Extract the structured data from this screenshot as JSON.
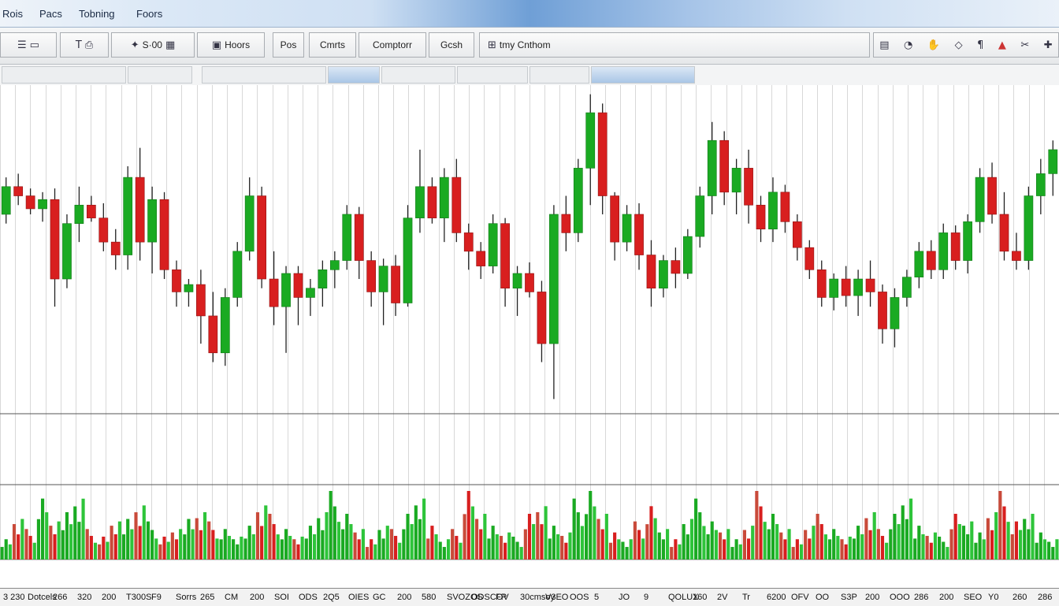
{
  "menu": [
    {
      "label": "Rois"
    },
    {
      "label": "Pacs"
    },
    {
      "label": "Tobning"
    },
    {
      "label": "Foors"
    }
  ],
  "toolbar": {
    "zoom_label": "S·00",
    "hours_label": "Hoors",
    "pos_label": "Pos",
    "charts_label": "Cmrts",
    "compare_label": "Comptorr",
    "grid_label": "Gcsh",
    "timing_label": "tmy Cnthom"
  },
  "icons": {
    "left": [
      "bars-icon",
      "data-window-icon",
      "text-tool-icon",
      "print-icon",
      "cursor-icon",
      "grid-icon",
      "chart-window-icon",
      "table-icon"
    ],
    "right": [
      "layout-icon",
      "clock-icon",
      "hand-icon",
      "diamond-icon",
      "shape-tool-icon",
      "triangle-alert-icon",
      "scissors-icon",
      "plus-crosshair-icon"
    ]
  },
  "colors": {
    "up": "#1aaa22",
    "down": "#d81f1f",
    "wick": "#222222"
  },
  "x_axis_labels": [
    "3 230",
    "Dotcels",
    "266",
    "320",
    "200",
    "T300S",
    "F9",
    "Sorrs",
    "265",
    "CM",
    "200",
    "SOI",
    "ODS",
    "2Q5",
    "OIES",
    "GC",
    "200",
    "580",
    "SVOZOS",
    "ODSCOV",
    "FP",
    "30cmsoy",
    "V3EO",
    "OOS",
    "5",
    "JO",
    "9",
    "QOLUX",
    "160",
    "2V",
    "Tr",
    "6200",
    "OFV",
    "OO",
    "S3P",
    "200",
    "OOO",
    "286",
    "200",
    "SEO",
    "Y0",
    "260",
    "286"
  ],
  "chart_data": {
    "type": "candlestick",
    "y_axis": "none visible",
    "grid": true,
    "series": [
      {
        "o": 200,
        "h": 220,
        "l": 195,
        "c": 215
      },
      {
        "o": 215,
        "h": 222,
        "l": 205,
        "c": 210
      },
      {
        "o": 210,
        "h": 214,
        "l": 200,
        "c": 203
      },
      {
        "o": 203,
        "h": 212,
        "l": 196,
        "c": 208
      },
      {
        "o": 208,
        "h": 214,
        "l": 150,
        "c": 165
      },
      {
        "o": 165,
        "h": 200,
        "l": 160,
        "c": 195
      },
      {
        "o": 195,
        "h": 215,
        "l": 185,
        "c": 205
      },
      {
        "o": 205,
        "h": 210,
        "l": 196,
        "c": 198
      },
      {
        "o": 198,
        "h": 206,
        "l": 180,
        "c": 185
      },
      {
        "o": 185,
        "h": 192,
        "l": 170,
        "c": 178
      },
      {
        "o": 178,
        "h": 226,
        "l": 170,
        "c": 220
      },
      {
        "o": 220,
        "h": 236,
        "l": 175,
        "c": 185
      },
      {
        "o": 185,
        "h": 215,
        "l": 168,
        "c": 208
      },
      {
        "o": 208,
        "h": 212,
        "l": 165,
        "c": 170
      },
      {
        "o": 170,
        "h": 175,
        "l": 150,
        "c": 158
      },
      {
        "o": 158,
        "h": 165,
        "l": 150,
        "c": 162
      },
      {
        "o": 162,
        "h": 170,
        "l": 130,
        "c": 145
      },
      {
        "o": 145,
        "h": 158,
        "l": 120,
        "c": 125
      },
      {
        "o": 125,
        "h": 160,
        "l": 118,
        "c": 155
      },
      {
        "o": 155,
        "h": 185,
        "l": 150,
        "c": 180
      },
      {
        "o": 180,
        "h": 220,
        "l": 175,
        "c": 210
      },
      {
        "o": 210,
        "h": 215,
        "l": 160,
        "c": 165
      },
      {
        "o": 165,
        "h": 180,
        "l": 140,
        "c": 150
      },
      {
        "o": 150,
        "h": 172,
        "l": 125,
        "c": 168
      },
      {
        "o": 168,
        "h": 172,
        "l": 140,
        "c": 155
      },
      {
        "o": 155,
        "h": 165,
        "l": 145,
        "c": 160
      },
      {
        "o": 160,
        "h": 175,
        "l": 150,
        "c": 170
      },
      {
        "o": 170,
        "h": 180,
        "l": 160,
        "c": 175
      },
      {
        "o": 175,
        "h": 205,
        "l": 170,
        "c": 200
      },
      {
        "o": 200,
        "h": 204,
        "l": 165,
        "c": 175
      },
      {
        "o": 175,
        "h": 180,
        "l": 150,
        "c": 158
      },
      {
        "o": 158,
        "h": 176,
        "l": 140,
        "c": 172
      },
      {
        "o": 172,
        "h": 178,
        "l": 145,
        "c": 152
      },
      {
        "o": 152,
        "h": 205,
        "l": 150,
        "c": 198
      },
      {
        "o": 198,
        "h": 235,
        "l": 190,
        "c": 215
      },
      {
        "o": 215,
        "h": 220,
        "l": 195,
        "c": 198
      },
      {
        "o": 198,
        "h": 225,
        "l": 185,
        "c": 220
      },
      {
        "o": 220,
        "h": 230,
        "l": 185,
        "c": 190
      },
      {
        "o": 190,
        "h": 195,
        "l": 170,
        "c": 180
      },
      {
        "o": 180,
        "h": 185,
        "l": 165,
        "c": 172
      },
      {
        "o": 172,
        "h": 200,
        "l": 168,
        "c": 195
      },
      {
        "o": 195,
        "h": 198,
        "l": 150,
        "c": 160
      },
      {
        "o": 160,
        "h": 172,
        "l": 145,
        "c": 168
      },
      {
        "o": 168,
        "h": 174,
        "l": 155,
        "c": 158
      },
      {
        "o": 158,
        "h": 164,
        "l": 120,
        "c": 130
      },
      {
        "o": 130,
        "h": 205,
        "l": 100,
        "c": 200
      },
      {
        "o": 200,
        "h": 210,
        "l": 180,
        "c": 190
      },
      {
        "o": 190,
        "h": 230,
        "l": 185,
        "c": 225
      },
      {
        "o": 225,
        "h": 265,
        "l": 205,
        "c": 255
      },
      {
        "o": 255,
        "h": 260,
        "l": 200,
        "c": 210
      },
      {
        "o": 210,
        "h": 212,
        "l": 175,
        "c": 185
      },
      {
        "o": 185,
        "h": 205,
        "l": 180,
        "c": 200
      },
      {
        "o": 200,
        "h": 206,
        "l": 170,
        "c": 178
      },
      {
        "o": 178,
        "h": 186,
        "l": 150,
        "c": 160
      },
      {
        "o": 160,
        "h": 178,
        "l": 155,
        "c": 175
      },
      {
        "o": 175,
        "h": 182,
        "l": 160,
        "c": 168
      },
      {
        "o": 168,
        "h": 192,
        "l": 165,
        "c": 188
      },
      {
        "o": 188,
        "h": 215,
        "l": 182,
        "c": 210
      },
      {
        "o": 210,
        "h": 250,
        "l": 200,
        "c": 240
      },
      {
        "o": 240,
        "h": 245,
        "l": 205,
        "c": 212
      },
      {
        "o": 212,
        "h": 230,
        "l": 200,
        "c": 225
      },
      {
        "o": 225,
        "h": 235,
        "l": 195,
        "c": 205
      },
      {
        "o": 205,
        "h": 210,
        "l": 185,
        "c": 192
      },
      {
        "o": 192,
        "h": 220,
        "l": 185,
        "c": 212
      },
      {
        "o": 212,
        "h": 216,
        "l": 190,
        "c": 196
      },
      {
        "o": 196,
        "h": 200,
        "l": 175,
        "c": 182
      },
      {
        "o": 182,
        "h": 186,
        "l": 165,
        "c": 170
      },
      {
        "o": 170,
        "h": 175,
        "l": 150,
        "c": 155
      },
      {
        "o": 155,
        "h": 168,
        "l": 148,
        "c": 165
      },
      {
        "o": 165,
        "h": 172,
        "l": 150,
        "c": 156
      },
      {
        "o": 156,
        "h": 170,
        "l": 145,
        "c": 165
      },
      {
        "o": 165,
        "h": 175,
        "l": 150,
        "c": 158
      },
      {
        "o": 158,
        "h": 162,
        "l": 130,
        "c": 138
      },
      {
        "o": 138,
        "h": 160,
        "l": 128,
        "c": 155
      },
      {
        "o": 155,
        "h": 170,
        "l": 150,
        "c": 166
      },
      {
        "o": 166,
        "h": 185,
        "l": 160,
        "c": 180
      },
      {
        "o": 180,
        "h": 186,
        "l": 165,
        "c": 170
      },
      {
        "o": 170,
        "h": 195,
        "l": 165,
        "c": 190
      },
      {
        "o": 190,
        "h": 194,
        "l": 170,
        "c": 175
      },
      {
        "o": 175,
        "h": 200,
        "l": 168,
        "c": 196
      },
      {
        "o": 196,
        "h": 225,
        "l": 190,
        "c": 220
      },
      {
        "o": 220,
        "h": 228,
        "l": 195,
        "c": 200
      },
      {
        "o": 200,
        "h": 212,
        "l": 175,
        "c": 180
      },
      {
        "o": 180,
        "h": 190,
        "l": 170,
        "c": 175
      },
      {
        "o": 175,
        "h": 215,
        "l": 170,
        "c": 210
      },
      {
        "o": 210,
        "h": 230,
        "l": 200,
        "c": 222
      },
      {
        "o": 222,
        "h": 240,
        "l": 210,
        "c": 235
      }
    ],
    "volume": [
      3,
      6,
      4,
      8,
      5,
      7,
      9,
      4,
      3,
      5,
      6,
      8,
      5,
      3,
      4,
      6,
      7,
      5,
      4,
      3,
      5,
      8,
      6,
      4,
      3,
      5,
      7,
      9,
      6,
      4,
      3,
      5,
      4,
      6,
      8,
      5,
      3,
      4,
      9,
      6,
      5,
      4,
      3,
      6,
      7,
      5,
      4,
      8,
      9,
      6,
      4,
      3,
      5,
      7,
      4,
      3,
      6,
      8,
      5,
      4,
      3,
      5,
      9,
      6,
      4,
      3,
      5,
      6,
      4,
      3,
      5,
      7,
      4,
      6,
      8,
      5,
      4,
      3,
      6,
      5,
      4,
      7,
      9,
      5,
      6,
      4,
      3
    ]
  }
}
